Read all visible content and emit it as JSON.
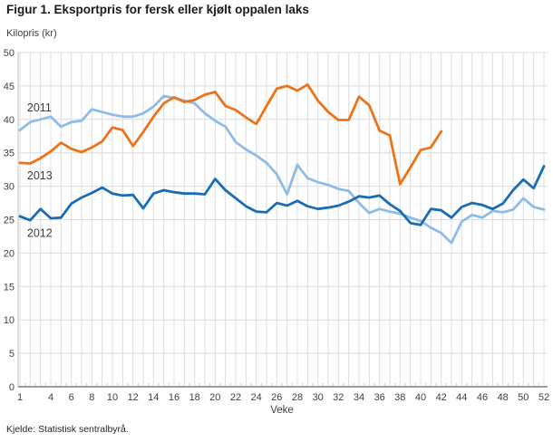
{
  "title": "Figur 1. Eksportpris for fersk eller kjølt oppalen laks",
  "y_axis_unit": "Kilopris (kr)",
  "x_axis_label": "Veke",
  "source": "Kjelde: Statistisk sentralbyrå.",
  "chart_data": {
    "type": "line",
    "xlabel": "Veke",
    "ylabel": "Kilopris (kr)",
    "x_weeks_range": [
      1,
      52
    ],
    "x_tick_labels": [
      1,
      4,
      6,
      8,
      10,
      12,
      14,
      16,
      18,
      20,
      22,
      24,
      26,
      28,
      30,
      32,
      34,
      36,
      38,
      40,
      42,
      44,
      46,
      48,
      50,
      52
    ],
    "ylim": [
      0,
      50
    ],
    "y_ticks": [
      0,
      5,
      10,
      15,
      20,
      25,
      30,
      35,
      40,
      45,
      50
    ],
    "grid": true,
    "colors": {
      "2011": "#8FBCE6",
      "2012": "#1A6CB5",
      "2013": "#ED7318",
      "grid": "#dcdcdc",
      "axis": "#9e9e9e"
    },
    "series": [
      {
        "name": "2011",
        "color": "#8FBCE6",
        "start_week": 1,
        "values": [
          38.4,
          39.6,
          40.0,
          40.4,
          38.9,
          39.6,
          39.8,
          41.5,
          41.1,
          40.7,
          40.4,
          40.4,
          40.9,
          41.9,
          43.5,
          43.2,
          42.8,
          42.4,
          40.9,
          39.8,
          38.9,
          36.6,
          35.5,
          34.6,
          33.5,
          31.8,
          28.8,
          33.2,
          31.2,
          30.6,
          30.2,
          29.6,
          29.3,
          27.5,
          26.0,
          26.6,
          26.2,
          25.9,
          25.3,
          24.8,
          23.8,
          23.0,
          21.5,
          24.7,
          25.7,
          25.3,
          26.3,
          26.1,
          26.5,
          28.2,
          26.9,
          26.5
        ]
      },
      {
        "name": "2013",
        "color": "#ED7318",
        "start_week": 1,
        "values": [
          33.5,
          33.4,
          34.2,
          35.2,
          36.5,
          35.6,
          35.1,
          35.8,
          36.7,
          38.8,
          38.4,
          36.0,
          38.1,
          40.4,
          42.4,
          43.3,
          42.6,
          42.9,
          43.7,
          44.1,
          42.0,
          41.4,
          40.3,
          39.3,
          42.0,
          44.6,
          45.0,
          44.3,
          45.2,
          42.8,
          41.1,
          39.9,
          39.9,
          43.4,
          42.1,
          38.3,
          37.6,
          30.3,
          32.8,
          35.4,
          35.8,
          38.2
        ]
      },
      {
        "name": "2012",
        "color": "#1A6CB5",
        "start_week": 1,
        "values": [
          25.5,
          24.9,
          26.6,
          25.2,
          25.3,
          27.4,
          28.3,
          29.0,
          29.8,
          28.9,
          28.6,
          28.7,
          26.7,
          28.9,
          29.4,
          29.1,
          28.9,
          28.9,
          28.8,
          31.1,
          29.4,
          28.2,
          27.0,
          26.2,
          26.1,
          27.5,
          27.1,
          27.8,
          27.0,
          26.6,
          26.8,
          27.1,
          27.7,
          28.5,
          28.3,
          28.6,
          27.3,
          26.3,
          24.5,
          24.2,
          26.6,
          26.4,
          25.3,
          26.9,
          27.5,
          27.2,
          26.6,
          27.4,
          29.4,
          31.0,
          29.7,
          33.0
        ]
      }
    ],
    "series_labels": [
      {
        "text": "2011",
        "week": 1.7,
        "value": 41.2
      },
      {
        "text": "2013",
        "week": 1.7,
        "value": 31.0
      },
      {
        "text": "2012",
        "week": 1.7,
        "value": 22.4
      }
    ],
    "legend_position": "inline-labels"
  }
}
